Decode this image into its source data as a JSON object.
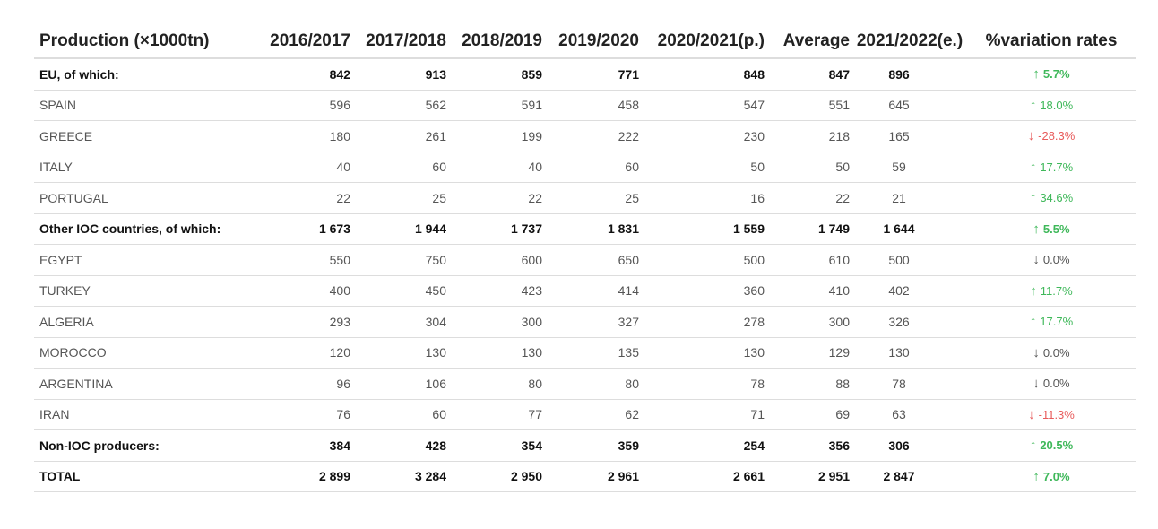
{
  "table": {
    "headers": [
      "Production (×1000tn)",
      "2016/2017",
      "2017/2018",
      "2018/2019",
      "2019/2020",
      "2020/2021(p.)",
      "Average",
      "2021/2022(e.)",
      "%variation rates"
    ],
    "rows": [
      {
        "name": "EU, of which:",
        "bold": true,
        "values": [
          "842",
          "913",
          "859",
          "771",
          "848",
          "847",
          "896"
        ],
        "trend": "up",
        "variation": "5.7%"
      },
      {
        "name": "SPAIN",
        "bold": false,
        "values": [
          "596",
          "562",
          "591",
          "458",
          "547",
          "551",
          "645"
        ],
        "trend": "up",
        "variation": "18.0%"
      },
      {
        "name": "GREECE",
        "bold": false,
        "values": [
          "180",
          "261",
          "199",
          "222",
          "230",
          "218",
          "165"
        ],
        "trend": "down",
        "variation": "-28.3%"
      },
      {
        "name": "ITALY",
        "bold": false,
        "values": [
          "40",
          "60",
          "40",
          "60",
          "50",
          "50",
          "59"
        ],
        "trend": "up",
        "variation": "17.7%"
      },
      {
        "name": "PORTUGAL",
        "bold": false,
        "values": [
          "22",
          "25",
          "22",
          "25",
          "16",
          "22",
          "21"
        ],
        "trend": "up",
        "variation": "34.6%"
      },
      {
        "name": "Other IOC countries, of which:",
        "bold": true,
        "values": [
          "1 673",
          "1 944",
          "1 737",
          "1 831",
          "1 559",
          "1 749",
          "1 644"
        ],
        "trend": "up",
        "variation": "5.5%"
      },
      {
        "name": "EGYPT",
        "bold": false,
        "values": [
          "550",
          "750",
          "600",
          "650",
          "500",
          "610",
          "500"
        ],
        "trend": "flat",
        "variation": "0.0%"
      },
      {
        "name": "TURKEY",
        "bold": false,
        "values": [
          "400",
          "450",
          "423",
          "414",
          "360",
          "410",
          "402"
        ],
        "trend": "up",
        "variation": "11.7%"
      },
      {
        "name": "ALGERIA",
        "bold": false,
        "values": [
          "293",
          "304",
          "300",
          "327",
          "278",
          "300",
          "326"
        ],
        "trend": "up",
        "variation": "17.7%"
      },
      {
        "name": "MOROCCO",
        "bold": false,
        "values": [
          "120",
          "130",
          "130",
          "135",
          "130",
          "129",
          "130"
        ],
        "trend": "flat",
        "variation": "0.0%"
      },
      {
        "name": "ARGENTINA",
        "bold": false,
        "values": [
          "96",
          "106",
          "80",
          "80",
          "78",
          "88",
          "78"
        ],
        "trend": "flat",
        "variation": "0.0%"
      },
      {
        "name": "IRAN",
        "bold": false,
        "values": [
          "76",
          "60",
          "77",
          "62",
          "71",
          "69",
          "63"
        ],
        "trend": "down",
        "variation": "-11.3%"
      },
      {
        "name": "Non-IOC producers:",
        "bold": true,
        "values": [
          "384",
          "428",
          "354",
          "359",
          "254",
          "356",
          "306"
        ],
        "trend": "up",
        "variation": "20.5%"
      },
      {
        "name": "TOTAL",
        "bold": true,
        "values": [
          "2 899",
          "3 284",
          "2 950",
          "2 961",
          "2 661",
          "2 951",
          "2 847"
        ],
        "trend": "up",
        "variation": "7.0%"
      }
    ]
  },
  "trend_icons": {
    "up": "arrow-up-icon",
    "down": "arrow-down-icon",
    "flat": "arrow-down-icon"
  },
  "colors": {
    "up": "#3fb85a",
    "down": "#e85b5b",
    "flat": "#555555"
  }
}
